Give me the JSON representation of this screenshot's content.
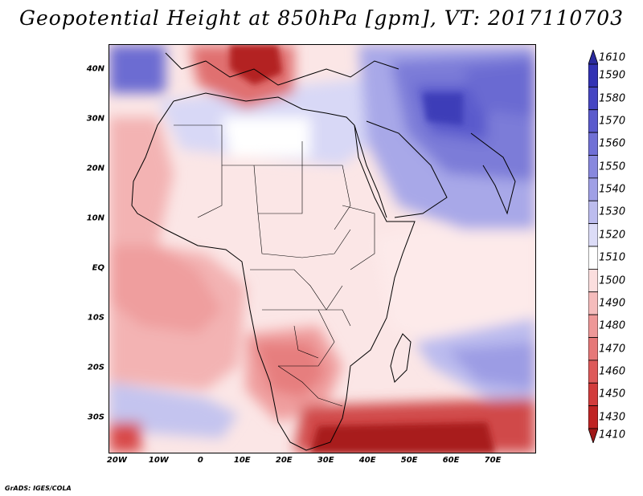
{
  "title": "Geopotential Height at 850hPa [gpm], VT: 2017110703",
  "credit": "GrADS: IGES/COLA",
  "map": {
    "lat_labels": [
      "40N",
      "30N",
      "20N",
      "10N",
      "EQ",
      "10S",
      "20S",
      "30S"
    ],
    "lat_values": [
      40,
      30,
      20,
      10,
      0,
      -10,
      -20,
      -30
    ],
    "lon_labels": [
      "20W",
      "10W",
      "0",
      "10E",
      "20E",
      "30E",
      "40E",
      "50E",
      "60E",
      "70E"
    ],
    "lon_values": [
      -20,
      -10,
      0,
      10,
      20,
      30,
      40,
      50,
      60,
      70
    ],
    "lon_range": [
      -22,
      80
    ],
    "lat_range": [
      -37,
      45
    ]
  },
  "colorbar": {
    "levels": [
      "1610",
      "1590",
      "1580",
      "1570",
      "1560",
      "1550",
      "1540",
      "1530",
      "1520",
      "1510",
      "1500",
      "1490",
      "1480",
      "1470",
      "1460",
      "1450",
      "1430",
      "1410"
    ],
    "colors": [
      "#2a2a9e",
      "#3232b4",
      "#4646c3",
      "#5a5acd",
      "#7070d6",
      "#8888de",
      "#a0a0e6",
      "#bcbcee",
      "#dcdcf7",
      "#ffffff",
      "#fbdede",
      "#f5bcbc",
      "#ee9898",
      "#e67878",
      "#de5a5a",
      "#d23c3c",
      "#c02424",
      "#a01818"
    ]
  }
}
